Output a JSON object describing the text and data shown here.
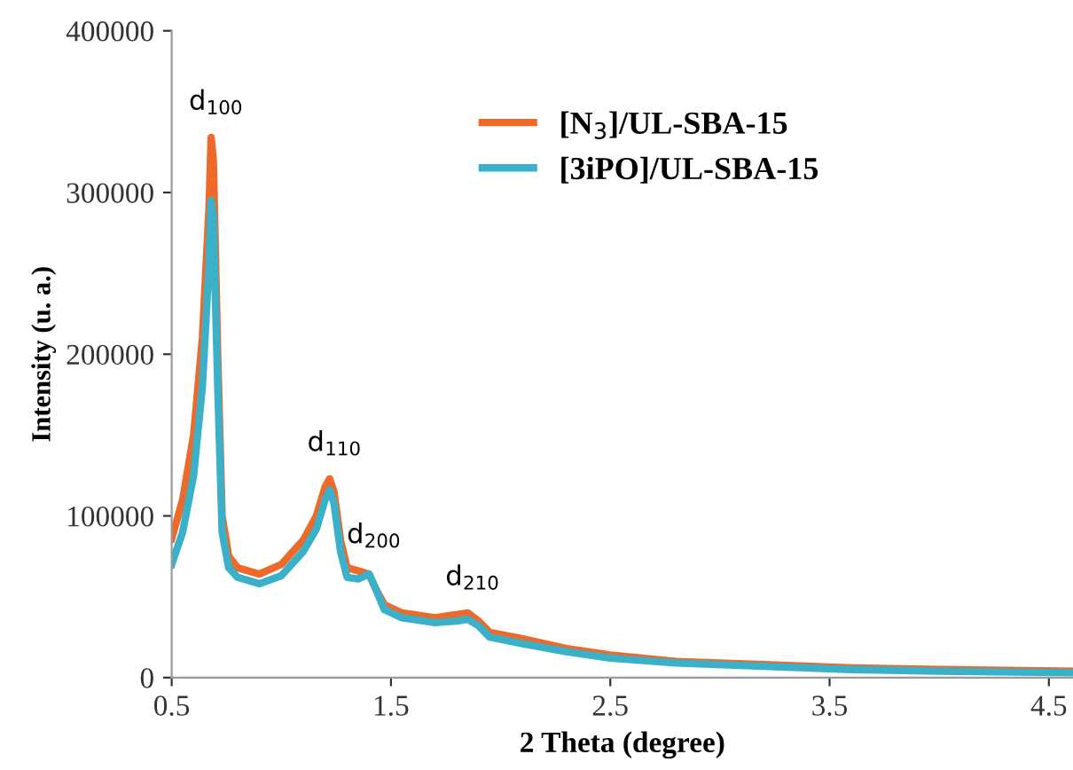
{
  "chart_data": {
    "type": "line",
    "xlabel": "2 Theta (degree)",
    "ylabel": "Intensity (u. a.)",
    "xlim": [
      0.5,
      4.61
    ],
    "xticks": [
      0.5,
      1.5,
      2.5,
      3.5,
      4.5
    ],
    "ylim": [
      0,
      400000
    ],
    "yticks": [
      0,
      100000,
      200000,
      300000,
      400000
    ],
    "grid": false,
    "legend": "top right",
    "marker": "none",
    "line_style": "solid",
    "series": [
      {
        "name": "[N$_{3}$]/UL-SBA-15",
        "color": "#ed6a2a",
        "x": [
          0.5,
          0.55,
          0.6,
          0.64,
          0.67,
          0.68,
          0.69,
          0.71,
          0.73,
          0.76,
          0.8,
          0.9,
          1.0,
          1.1,
          1.16,
          1.2,
          1.22,
          1.24,
          1.27,
          1.3,
          1.35,
          1.4,
          1.43,
          1.47,
          1.55,
          1.7,
          1.8,
          1.85,
          1.9,
          1.95,
          2.1,
          2.3,
          2.5,
          2.8,
          3.2,
          3.6,
          4.0,
          4.61
        ],
        "values": [
          86000,
          110000,
          150000,
          210000,
          290000,
          334000,
          320000,
          200000,
          100000,
          75000,
          68000,
          64000,
          70000,
          85000,
          100000,
          118000,
          123000,
          115000,
          85000,
          68000,
          66000,
          64000,
          55000,
          45000,
          40000,
          37000,
          39000,
          40000,
          35000,
          28000,
          24000,
          18000,
          14000,
          10000,
          8000,
          6000,
          5000,
          4000
        ]
      },
      {
        "name": "[3iPO]/UL-SBA-15",
        "color": "#3bb0c9",
        "x": [
          0.5,
          0.55,
          0.6,
          0.64,
          0.67,
          0.68,
          0.69,
          0.71,
          0.73,
          0.76,
          0.8,
          0.9,
          1.0,
          1.1,
          1.16,
          1.2,
          1.22,
          1.24,
          1.27,
          1.3,
          1.35,
          1.4,
          1.43,
          1.47,
          1.55,
          1.7,
          1.8,
          1.85,
          1.9,
          1.95,
          2.1,
          2.3,
          2.5,
          2.8,
          3.2,
          3.6,
          4.0,
          4.61
        ],
        "values": [
          70000,
          90000,
          125000,
          180000,
          255000,
          295000,
          285000,
          180000,
          90000,
          68000,
          62000,
          58000,
          63000,
          78000,
          92000,
          110000,
          116000,
          108000,
          78000,
          62000,
          61000,
          64000,
          55000,
          42000,
          37000,
          34000,
          35000,
          36000,
          32000,
          25000,
          21000,
          16000,
          12000,
          9000,
          7000,
          5000,
          4000,
          3000
        ]
      }
    ],
    "annotations": [
      {
        "text": "d$_{100}$",
        "x": 0.68,
        "y": 334000
      },
      {
        "text": "d$_{110}$",
        "x": 1.22,
        "y": 123000
      },
      {
        "text": "d$_{200}$",
        "x": 1.4,
        "y": 66000
      },
      {
        "text": "d$_{210}$",
        "x": 1.85,
        "y": 40000
      }
    ]
  }
}
